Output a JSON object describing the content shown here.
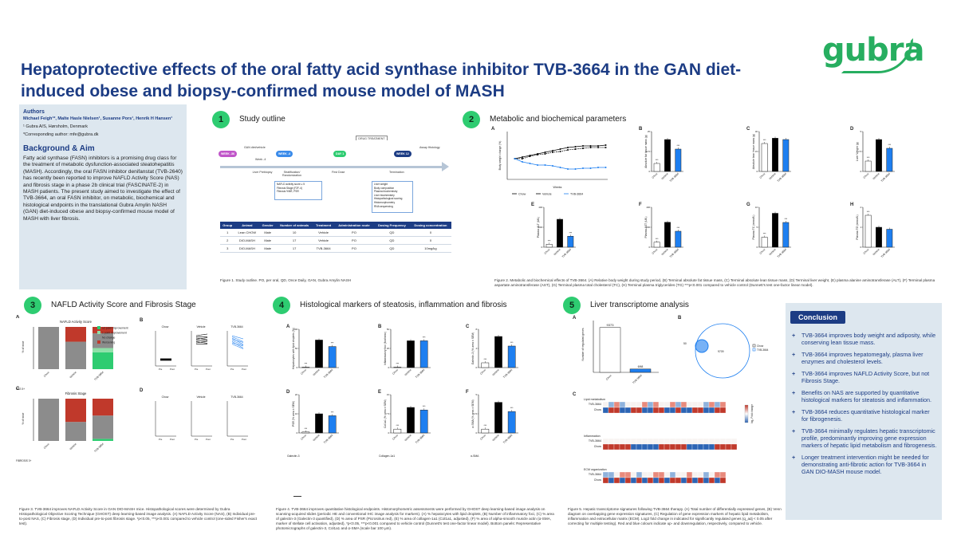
{
  "title": "Hepatoprotective effects of the oral fatty acid synthase inhibitor TVB-3664 in the GAN diet-induced obese and biopsy-confirmed mouse model of MASH",
  "logo": "gubra",
  "authors": {
    "heading": "Authors",
    "names": "Michael Feigh¹*, Malte Hasle Nielsen¹, Susanne Pors¹, Henrik H Hansen¹",
    "affiliation": "¹ Gubra A/S, Hørsholm, Denmark",
    "corresponding": "*Corresponding author: mfe@gubra.dk"
  },
  "background": {
    "heading": "Background & Aim",
    "text": "Fatty acid synthase (FASN) inhibitors is a promising drug class for the treatment of metabolic dysfunction-associated steatohepatitis (MASH). Accordingly, the oral FASN inhibitor denifanstat (TVB-2640) has recently been reported to improve NAFLD Activity Score (NAS) and fibrosis stage in a phase 2b clinical trial (FASCINATE-2) in MASH patients. The present study aimed to investigate the effect of TVB-3664, an oral FASN inhibitor, on metabolic, biochemical and histological endpoints in the translational Gubra Amylin NASH (GAN) diet-induced obese and biopsy-confirmed mouse model of MASH with liver fibrosis."
  },
  "sections": {
    "s1": {
      "num": "1",
      "title": "Study outline"
    },
    "s2": {
      "num": "2",
      "title": "Metabolic and biochemical parameters"
    },
    "s3": {
      "num": "3",
      "title": "NAFLD Activity Score and Fibrosis Stage"
    },
    "s4": {
      "num": "4",
      "title": "Histological markers of steatosis, inflammation and fibrosis"
    },
    "s5": {
      "num": "5",
      "title": "Liver transcriptome analysis"
    }
  },
  "study_outline": {
    "timeline": {
      "week_minus_36": "WEEK -36",
      "week_minus_4": "WEEK -4",
      "day1": "DAY 1",
      "week12": "WEEK 12",
      "gan_start": "GAN diet/vehicle",
      "week_minus_4_label": "Week -4",
      "liver_prebiopsy": "Liver Prebiopsy",
      "stratification": "Stratification/ Randomization",
      "first_dose": "First Dose",
      "termination": "Termination",
      "drug_treatment": "DRUG TREATMENT",
      "assay_histology": "Assay Histology",
      "prebiopsy_list": [
        "NAFLD activity score ≥ 5",
        "Fibrosis Stage (F2F-4)",
        "Fibrosis %NR, PSR"
      ],
      "termination_list": [
        "Liver weight",
        "Body composition",
        "Plasma biochemistry",
        "Liver biochemistry",
        "Histopathological scoring",
        "Histomorphometry",
        "RNA sequencing"
      ]
    },
    "table": {
      "headers": [
        "Group",
        "Animal",
        "Gender",
        "Number of animals",
        "Treatment",
        "Administration route",
        "Dosing Frequency",
        "Dosing concentration"
      ],
      "rows": [
        [
          "1",
          "Lean CHOW",
          "Male",
          "10",
          "Vehicle",
          "PO",
          "QD",
          "0"
        ],
        [
          "2",
          "DIO-MASH",
          "Male",
          "17",
          "Vehicle",
          "PO",
          "QD",
          "0"
        ],
        [
          "3",
          "DIO-MASH",
          "Male",
          "17",
          "TVB-3664",
          "PO",
          "QD",
          "10mg/kg"
        ]
      ]
    },
    "caption": "Figure 1. Study outline. PO, per oral, QD, Once Daily, GAN, Gubra Amylin NASH"
  },
  "metabolic": {
    "legend": [
      "Chow",
      "Vehicle",
      "TVB-3664"
    ],
    "panel_a": {
      "letter": "A",
      "ylabel": "Body weight change (%)",
      "xlabel": "Weeks"
    },
    "panels": [
      {
        "letter": "B",
        "ylabel": "Absolute fat tissue mass (g)"
      },
      {
        "letter": "C",
        "ylabel": "Absolute lean tissue mass (g)"
      },
      {
        "letter": "D",
        "ylabel": "Liver Weight (g)"
      },
      {
        "letter": "E",
        "ylabel": "Plasma ALT (U/L)"
      },
      {
        "letter": "F",
        "ylabel": "Plasma AST (U/L)"
      },
      {
        "letter": "G",
        "ylabel": "Plasma TC (mmol/L)"
      },
      {
        "letter": "H",
        "ylabel": "Plasma TG (mmol/L)"
      }
    ],
    "categories": [
      "Chow",
      "Vehicle",
      "TVB-3664"
    ],
    "caption": "Figure 2. Metabolic and biochemical effects of TVB-3664. (A) Relative body weight during study period, (B) Terminal absolute fat tissue mass, (C) Terminal absolute lean tissue mass, (D) Terminal liver weight, (E) plasma alanine aminotransferase (ALT), (F) Terminal plasma aspartate aminotransferase (AST), (G) Terminal plasma total cholesterol (TC), (H) Terminal plasma triglycerides (TG) ***p<0.001 compared to vehicle control (Dunnett's test one-factor linear model)."
  },
  "nas": {
    "panel_a_title": "NAFLD Activity Score",
    "panel_c_title": "Fibrosis Stage",
    "legend": [
      "≥2 point improvement",
      "1 point improvement",
      "No change",
      "Worsening"
    ],
    "ylabel": "% of mice",
    "categories": [
      "Chow",
      "Vehicle",
      "TVB-3664"
    ],
    "nas_label": "NAS 5+",
    "fibrosis_label": "FIBROSIS 3+",
    "groups": [
      "Chow",
      "Vehicle",
      "TVB-3664"
    ],
    "pre_post": [
      "Pre",
      "Post"
    ],
    "caption": "Figure 3. TVB-3664 improves NAFLD Activity Score in GAN DIO-MASH mice. Histopathological scores were determined by Gubra Histopathological Objective Scoring Technique (GHOST) deep learning-based image analysis. (A) NAFLD Activity Score (NAS), (B) Individual pre-to-post NAS, (C) Fibrosis stage, (D) Individual pre-to-post fibrosis stage. *p<0.05, ***p<0.001 compared to vehicle control (one-sided Fisher's exact test)."
  },
  "histo": {
    "panels": [
      {
        "letter": "A",
        "ylabel": "Hepatocytes with lipid droplets (%)"
      },
      {
        "letter": "B",
        "ylabel": "Inflammatory foci (foci/mm²)"
      },
      {
        "letter": "C",
        "ylabel": "Galectin-3 (% area ± SEM)"
      },
      {
        "letter": "D",
        "ylabel": "PSR (% area ± SEM)"
      },
      {
        "letter": "E",
        "ylabel": "Col1a1 (% area ± SEM)"
      },
      {
        "letter": "F",
        "ylabel": "α-SMA (% area ± SEM)"
      }
    ],
    "categories": [
      "Chow",
      "Vehicle",
      "TVB-3664"
    ],
    "stain_labels": [
      "Galectin-3",
      "Collagen-1a1",
      "α-SMA"
    ],
    "caption": "Figure 4. TVB-3664 improves quantitative histological endpoints. Histomorphometric assessments were performed by GHOST deep learning-based image analysis on scanning-acquired slides (periodic HE and conventional IHC image analysis for markers). (A) % hepatocytes with lipid droplets, (B) Number of inflammatory foci, (C) % area of galectin-3 (Galectin-3 quantified), (D) % area of PSR (Picrosirius red), (E) % area of collagen-1a1 (Col1a1, adjusted), (F) % area of alpha-smooth muscle actin (α-SMA, marker of stellate cell activation, adjusted), *p<0.05, ***p<0.001 compared to vehicle control (Dunnett's test one-factor linear model). Bottom panels: Representative photomicrographs of galectin-3, Col1a1 and α-SMA (scale bar 100 μm)."
  },
  "transcriptome": {
    "panel_a_ylabel": "Number of regulated genes",
    "bar_values_labels": [
      "9373",
      "698"
    ],
    "categories": [
      "Chow",
      "TVB-3664"
    ],
    "venn_values": [
      "50",
      "9709"
    ],
    "venn_legend": [
      "Chow",
      "TVB-3664"
    ],
    "heatmap_sections": [
      "Lipid metabolism",
      "Inflammation",
      "ECM organization"
    ],
    "heatmap_rows": [
      "TVB-3664",
      "Chow"
    ],
    "color_scale_label": "log₂ Fold change",
    "caption": "Figure 5. Hepatic transcriptome signatures following TVB-3664 therapy. (A) Total number of differentially expressed genes, (B) Venn diagram on overlapping gene expression signatures, (C) Regulation of gene expression markers of hepatic lipid metabolism, inflammation and extracellular matrix (ECM). Log2 fold change in indicated for significantly regulated genes (q_adj < 0.05 after correcting for multiple testing). Red and blue colours indicate up- and downregulation, respectively, compared to vehicle."
  },
  "conclusion": {
    "heading": "Conclusion",
    "items": [
      "TVB-3664 improves body weight and adiposity, while conserving lean tissue mass.",
      "TVB-3664 improves hepatomegaly, plasma liver enzymes and cholesterol levels.",
      "TVB-3664 improves NAFLD Activity Score, but not Fibrosis Stage.",
      "Benefits on NAS are supported by quantitative histological markers for steatosis and inflammation.",
      "TVB-3664 reduces quantitative histological marker for fibrogenesis.",
      "TVB-3664 minimally regulates hepatic transcriptomic profile, predominantly improving gene expression markers of hepatic lipid metabolism and fibrogenesis.",
      "Longer treatment intervention might be needed for demonstrating anti-fibrotic action for TVB-3664 in GAN DIO-MASH mouse model."
    ]
  },
  "colors": {
    "navy": "#1c3c84",
    "green": "#2ecc71",
    "chow": "#ffffff",
    "vehicle": "#000000",
    "tvb": "#1e7ff0"
  },
  "chart_data": [
    {
      "type": "bar",
      "panel": "2B",
      "categories": [
        "Chow",
        "Vehicle",
        "TVB-3664"
      ],
      "values": [
        5,
        20,
        14
      ],
      "ylim": [
        0,
        25
      ]
    },
    {
      "type": "bar",
      "panel": "2C",
      "categories": [
        "Chow",
        "Vehicle",
        "TVB-3664"
      ],
      "values": [
        21,
        25,
        24
      ],
      "ylim": [
        0,
        30
      ]
    },
    {
      "type": "bar",
      "panel": "2D",
      "categories": [
        "Chow",
        "Vehicle",
        "TVB-3664"
      ],
      "values": [
        1.3,
        4.0,
        2.9
      ],
      "ylim": [
        0,
        5
      ]
    },
    {
      "type": "bar",
      "panel": "2E",
      "categories": [
        "Chow",
        "Vehicle",
        "TVB-3664"
      ],
      "values": [
        30,
        280,
        110
      ],
      "ylim": [
        0,
        400
      ]
    },
    {
      "type": "bar",
      "panel": "2F",
      "categories": [
        "Chow",
        "Vehicle",
        "TVB-3664"
      ],
      "values": [
        50,
        250,
        160
      ],
      "ylim": [
        0,
        400
      ]
    },
    {
      "type": "bar",
      "panel": "2G",
      "categories": [
        "Chow",
        "Vehicle",
        "TVB-3664"
      ],
      "values": [
        2.5,
        8.5,
        6.2
      ],
      "ylim": [
        0,
        10
      ]
    },
    {
      "type": "bar",
      "panel": "2H",
      "categories": [
        "Chow",
        "Vehicle",
        "TVB-3664"
      ],
      "values": [
        1.6,
        1.0,
        0.9
      ],
      "ylim": [
        0,
        2
      ]
    },
    {
      "type": "bar",
      "panel": "4A",
      "categories": [
        "Chow",
        "Vehicle",
        "TVB-3664"
      ],
      "values": [
        0,
        72,
        55
      ],
      "ylim": [
        0,
        100
      ]
    },
    {
      "type": "bar",
      "panel": "4B",
      "categories": [
        "Chow",
        "Vehicle",
        "TVB-3664"
      ],
      "values": [
        0,
        35,
        35
      ],
      "ylim": [
        0,
        50
      ]
    },
    {
      "type": "bar",
      "panel": "4C",
      "categories": [
        "Chow",
        "Vehicle",
        "TVB-3664"
      ],
      "values": [
        1,
        6.5,
        4.5
      ],
      "ylim": [
        0,
        8
      ]
    },
    {
      "type": "bar",
      "panel": "4D",
      "categories": [
        "Chow",
        "Vehicle",
        "TVB-3664"
      ],
      "values": [
        0.5,
        10,
        9
      ],
      "ylim": [
        0,
        20
      ]
    },
    {
      "type": "bar",
      "panel": "4E",
      "categories": [
        "Chow",
        "Vehicle",
        "TVB-3664"
      ],
      "values": [
        1.5,
        10,
        9
      ],
      "ylim": [
        0,
        15
      ]
    },
    {
      "type": "bar",
      "panel": "4F",
      "categories": [
        "Chow",
        "Vehicle",
        "TVB-3664"
      ],
      "values": [
        0.5,
        4,
        2.8
      ],
      "ylim": [
        0,
        5
      ]
    },
    {
      "type": "bar",
      "panel": "5A",
      "categories": [
        "Chow",
        "TVB-3664"
      ],
      "values": [
        9373,
        698
      ],
      "ylim": [
        0,
        10000
      ]
    }
  ]
}
